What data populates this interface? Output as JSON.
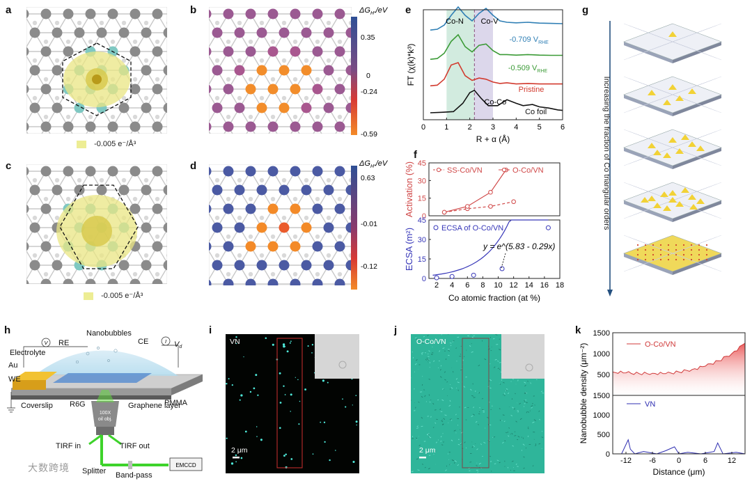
{
  "panel_labels": [
    "a",
    "b",
    "c",
    "d",
    "e",
    "f",
    "g",
    "h",
    "i",
    "j",
    "k"
  ],
  "panel_a": {
    "legend": "-0.005 e⁻/Å³"
  },
  "panel_c": {
    "legend": "-0.005 e⁻/Å³"
  },
  "panel_b": {
    "cbar_title": "ΔG",
    "cbar_sub": "H*",
    "cbar_unit": "/eV",
    "ticks": [
      "0.35",
      "0",
      "-0.24",
      "-0.59"
    ]
  },
  "panel_d": {
    "cbar_title": "ΔG",
    "cbar_sub": "H*",
    "cbar_unit": "/eV",
    "ticks": [
      "0.63",
      "-0.01",
      "-0.12"
    ]
  },
  "panel_g": {
    "axis_label": "Increasing the fraction of Co triangular orders"
  },
  "panel_h": {
    "labels": {
      "nanobubbles": "Nanobubbles",
      "electrolyte": "Electrolyte",
      "re": "RE",
      "ce": "CE",
      "au": "Au",
      "we": "WE",
      "pmma": "PMMA",
      "coverslip": "Coverslip",
      "r6g": "R6G",
      "graphene": "Graphene layer",
      "objective1": "100X",
      "objective2": "oil obj.",
      "tirf_in": "TIRF in",
      "tirf_out": "TIRF out",
      "splitter": "Splitter",
      "bandpass": "Band-pass",
      "emccd": "EMCCD",
      "v": "V",
      "i": "I",
      "vd": "V"
    }
  },
  "panel_i": {
    "label": "VN",
    "scalebar": "2 μm"
  },
  "panel_j": {
    "label": "O-Co/VN",
    "scalebar": "2 μm"
  },
  "watermark": "大数跨境",
  "chart_data": [
    {
      "id": "e",
      "type": "line",
      "xlabel": "R + α (Å)",
      "ylabel": "FT (χ(k)*k³)",
      "xlim": [
        0,
        6
      ],
      "xticks": [
        0,
        1,
        2,
        3,
        4,
        5,
        6
      ],
      "annotations": [
        "Co-N",
        "Co-V",
        "Co-Co"
      ],
      "series": [
        {
          "name": "-0.709 V",
          "sub": "RHE",
          "color": "#2f7fb5",
          "x": [
            0.3,
            0.6,
            0.9,
            1.2,
            1.5,
            1.8,
            2.1,
            2.4,
            2.7,
            3.0,
            3.3,
            3.6,
            4.0,
            4.5,
            5.0,
            5.5,
            6.0
          ],
          "y": [
            0.02,
            0.05,
            0.2,
            0.55,
            0.85,
            0.55,
            0.35,
            0.62,
            0.8,
            0.55,
            0.35,
            0.3,
            0.28,
            0.3,
            0.27,
            0.26,
            0.25
          ]
        },
        {
          "name": "-0.509 V",
          "sub": "RHE",
          "color": "#3a9a35",
          "x": [
            0.3,
            0.6,
            0.9,
            1.2,
            1.5,
            1.8,
            2.1,
            2.4,
            2.7,
            3.0,
            3.3,
            3.6,
            4.0,
            4.5,
            5.0,
            5.5,
            6.0
          ],
          "y": [
            0.02,
            0.05,
            0.25,
            0.7,
            0.95,
            0.5,
            0.3,
            0.55,
            0.6,
            0.35,
            0.2,
            0.2,
            0.18,
            0.2,
            0.18,
            0.17,
            0.17
          ]
        },
        {
          "name": "Pristine",
          "color": "#d23a2e",
          "x": [
            0.3,
            0.6,
            0.9,
            1.2,
            1.5,
            1.8,
            2.1,
            2.4,
            2.7,
            3.0,
            3.3,
            3.6,
            4.0,
            4.5,
            5.0,
            5.5,
            6.0
          ],
          "y": [
            0.02,
            0.05,
            0.3,
            0.9,
            1.0,
            0.45,
            0.25,
            0.35,
            0.3,
            0.18,
            0.12,
            0.15,
            0.1,
            0.12,
            0.1,
            0.1,
            0.1
          ]
        },
        {
          "name": "Co foil",
          "color": "#111111",
          "x": [
            0.3,
            0.8,
            1.3,
            1.7,
            2.0,
            2.2,
            2.5,
            2.8,
            3.2,
            3.6,
            4.0,
            4.3,
            4.7,
            5.0,
            5.4,
            5.8,
            6.0
          ],
          "y": [
            0.0,
            0.02,
            0.05,
            0.4,
            0.85,
            0.95,
            0.6,
            0.3,
            0.3,
            0.55,
            0.4,
            0.3,
            0.35,
            0.25,
            0.2,
            0.12,
            0.1
          ]
        }
      ]
    },
    {
      "id": "f-top",
      "type": "line",
      "ylabel": "Activation (%)",
      "ylim": [
        0,
        45
      ],
      "yticks": [
        0,
        15,
        30,
        45
      ],
      "series": [
        {
          "name": "SS-Co/VN",
          "color": "#d04848",
          "dashed": true,
          "x": [
            3,
            6,
            9,
            12
          ],
          "y": [
            3,
            6,
            8,
            12
          ]
        },
        {
          "name": "O-Co/VN",
          "color": "#d04848",
          "dashed": false,
          "x": [
            3,
            6,
            9,
            11
          ],
          "y": [
            3,
            8,
            20,
            39
          ]
        }
      ]
    },
    {
      "id": "f-bottom",
      "type": "scatter",
      "xlabel": "Co atomic fraction (at %)",
      "ylabel": "ECSA (m²)",
      "xlim": [
        1,
        18
      ],
      "xticks": [
        2,
        4,
        6,
        8,
        10,
        12,
        14,
        16,
        18
      ],
      "ylim": [
        0,
        45
      ],
      "yticks": [
        0,
        15,
        30,
        45
      ],
      "equation": "y = e^(5.83 - 0.29x)",
      "series": [
        {
          "name": "ECSA of O-Co/VN",
          "color": "#3636b8",
          "x": [
            2,
            4,
            6.8,
            10.5,
            16.5
          ],
          "y": [
            0.5,
            1.5,
            2.5,
            7.5,
            39
          ]
        }
      ]
    },
    {
      "id": "k-top",
      "type": "area",
      "ylabel": "Nanobubble density (μm⁻²)",
      "xlim": [
        -15,
        15
      ],
      "ylim": [
        0,
        1500
      ],
      "yticks": [
        0,
        500,
        1000,
        1500
      ],
      "series": [
        {
          "name": "O-Co/VN",
          "color": "#d03a3a",
          "x": [
            -15,
            -12,
            -9,
            -6,
            -3,
            0,
            3,
            6,
            9,
            12,
            15
          ],
          "y": [
            560,
            540,
            520,
            530,
            520,
            560,
            620,
            700,
            830,
            1000,
            1250
          ]
        }
      ]
    },
    {
      "id": "k-bottom",
      "type": "line",
      "xlabel": "Distance (μm)",
      "ylim": [
        0,
        1500
      ],
      "yticks": [
        0,
        500,
        1000,
        1500
      ],
      "xlim": [
        -15,
        15
      ],
      "xticks": [
        -12,
        -6,
        0,
        6,
        12
      ],
      "series": [
        {
          "name": "VN",
          "color": "#2c2cb0",
          "x": [
            -15,
            -13,
            -11.5,
            -11,
            -10,
            -8,
            -5,
            -3,
            -1,
            0,
            2,
            5,
            8,
            8.8,
            10,
            13,
            15
          ],
          "y": [
            0,
            0,
            360,
            120,
            0,
            60,
            0,
            80,
            180,
            0,
            40,
            0,
            60,
            280,
            0,
            40,
            0
          ]
        }
      ]
    }
  ]
}
